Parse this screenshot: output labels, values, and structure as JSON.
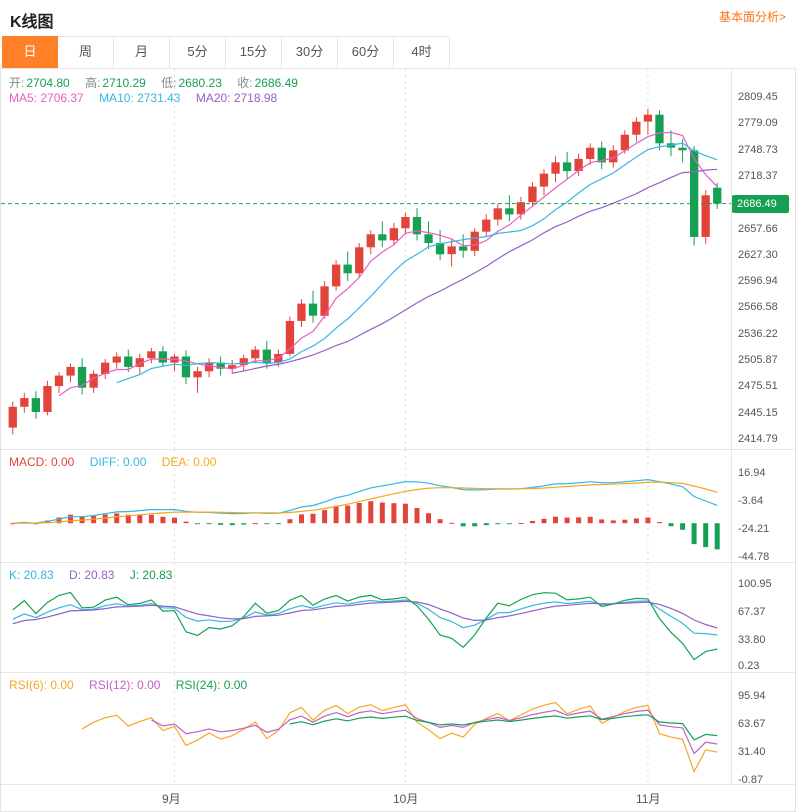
{
  "header": {
    "title": "K线图",
    "link": "基本面分析>"
  },
  "tabs": [
    {
      "id": "day",
      "label": "日",
      "active": true
    },
    {
      "id": "week",
      "label": "周",
      "active": false
    },
    {
      "id": "month",
      "label": "月",
      "active": false
    },
    {
      "id": "m5",
      "label": "5分",
      "active": false
    },
    {
      "id": "m15",
      "label": "15分",
      "active": false
    },
    {
      "id": "m30",
      "label": "30分",
      "active": false
    },
    {
      "id": "m60",
      "label": "60分",
      "active": false
    },
    {
      "id": "h4",
      "label": "4时",
      "active": false
    }
  ],
  "main_legend": {
    "open_label": "开:",
    "open": "2704.80",
    "high_label": "高:",
    "high": "2710.29",
    "low_label": "低:",
    "low": "2680.23",
    "close_label": "收:",
    "close": "2686.49",
    "ma5": "MA5: 2706.37",
    "ma10": "MA10: 2731.43",
    "ma20": "MA20: 2718.98"
  },
  "macd_legend": {
    "macd": "MACD: 0.00",
    "diff": "DIFF: 0.00",
    "dea": "DEA: 0.00"
  },
  "kdj_legend": {
    "k": "K: 20.83",
    "d": "D: 20.83",
    "j": "J: 20.83"
  },
  "rsi_legend": {
    "rsi6": "RSI(6): 0.00",
    "rsi12": "RSI(12): 0.00",
    "rsi24": "RSI(24): 0.00"
  },
  "last_price": "2686.49",
  "colors": {
    "up": "#e2443b",
    "down": "#16a053",
    "accent": "#ff8026",
    "link": "#ff7214",
    "ma5": "#e75fc3",
    "ma10": "#35b8e0",
    "ma20": "#9460c8",
    "diff": "#35b8e0",
    "dea": "#f5a623",
    "k": "#35b8e0",
    "d": "#9460c8",
    "j": "#16a053",
    "rsi6": "#f5a623",
    "rsi12": "#c45fc4",
    "rsi24": "#16a053",
    "price_tag": "#16a053",
    "grid": "#d9d9d9"
  },
  "chart_data": {
    "type": "candlestick",
    "title": "K线图 (日)",
    "ylim": [
      2414.79,
      2809.45
    ],
    "y_axis": {
      "main": [
        "2809.45",
        "2779.09",
        "2748.73",
        "2718.37",
        "2657.66",
        "2627.30",
        "2596.94",
        "2566.58",
        "2536.22",
        "2505.87",
        "2475.51",
        "2445.15",
        "2414.79"
      ],
      "macd": [
        "16.94",
        "-3.64",
        "-24.21",
        "-44.78"
      ],
      "kdj": [
        "100.95",
        "67.37",
        "33.80",
        "0.23"
      ],
      "rsi": [
        "95.94",
        "63.67",
        "31.40",
        "-0.87"
      ]
    },
    "months": [
      {
        "label": "9月",
        "index": 14
      },
      {
        "label": "10月",
        "index": 34
      },
      {
        "label": "11月",
        "index": 55
      }
    ],
    "indicators": {
      "ma": [
        5,
        10,
        20
      ],
      "macd": [
        12,
        26,
        9
      ],
      "kdj": [
        9,
        3,
        3
      ],
      "rsi": [
        6,
        12,
        24
      ]
    },
    "candles": [
      [
        2428,
        2458,
        2420,
        2452
      ],
      [
        2452,
        2468,
        2445,
        2462
      ],
      [
        2462,
        2470,
        2438,
        2446
      ],
      [
        2446,
        2482,
        2442,
        2476
      ],
      [
        2476,
        2492,
        2468,
        2488
      ],
      [
        2488,
        2502,
        2480,
        2498
      ],
      [
        2498,
        2508,
        2466,
        2474
      ],
      [
        2474,
        2494,
        2468,
        2490
      ],
      [
        2490,
        2507,
        2484,
        2503
      ],
      [
        2503,
        2515,
        2496,
        2510
      ],
      [
        2510,
        2518,
        2492,
        2498
      ],
      [
        2498,
        2513,
        2490,
        2508
      ],
      [
        2508,
        2520,
        2502,
        2516
      ],
      [
        2516,
        2522,
        2498,
        2503
      ],
      [
        2503,
        2513,
        2493,
        2510
      ],
      [
        2510,
        2517,
        2478,
        2486
      ],
      [
        2486,
        2498,
        2468,
        2493
      ],
      [
        2493,
        2508,
        2486,
        2503
      ],
      [
        2503,
        2510,
        2488,
        2496
      ],
      [
        2496,
        2506,
        2490,
        2500
      ],
      [
        2500,
        2512,
        2493,
        2508
      ],
      [
        2508,
        2522,
        2502,
        2518
      ],
      [
        2518,
        2528,
        2496,
        2503
      ],
      [
        2503,
        2518,
        2498,
        2513
      ],
      [
        2513,
        2556,
        2510,
        2551
      ],
      [
        2551,
        2576,
        2544,
        2571
      ],
      [
        2571,
        2586,
        2549,
        2557
      ],
      [
        2557,
        2597,
        2554,
        2591
      ],
      [
        2591,
        2621,
        2586,
        2616
      ],
      [
        2616,
        2631,
        2597,
        2606
      ],
      [
        2606,
        2641,
        2601,
        2636
      ],
      [
        2636,
        2656,
        2628,
        2651
      ],
      [
        2651,
        2666,
        2636,
        2644
      ],
      [
        2644,
        2664,
        2638,
        2658
      ],
      [
        2658,
        2676,
        2651,
        2671
      ],
      [
        2671,
        2681,
        2644,
        2651
      ],
      [
        2651,
        2666,
        2634,
        2641
      ],
      [
        2641,
        2656,
        2621,
        2628
      ],
      [
        2628,
        2646,
        2614,
        2637
      ],
      [
        2637,
        2651,
        2624,
        2632
      ],
      [
        2632,
        2658,
        2626,
        2654
      ],
      [
        2654,
        2674,
        2648,
        2668
      ],
      [
        2668,
        2686,
        2661,
        2681
      ],
      [
        2681,
        2696,
        2666,
        2674
      ],
      [
        2674,
        2694,
        2668,
        2688
      ],
      [
        2688,
        2711,
        2684,
        2706
      ],
      [
        2706,
        2726,
        2696,
        2721
      ],
      [
        2721,
        2741,
        2711,
        2734
      ],
      [
        2734,
        2746,
        2714,
        2724
      ],
      [
        2724,
        2744,
        2718,
        2738
      ],
      [
        2738,
        2756,
        2731,
        2751
      ],
      [
        2751,
        2758,
        2726,
        2734
      ],
      [
        2734,
        2754,
        2728,
        2748
      ],
      [
        2748,
        2771,
        2744,
        2766
      ],
      [
        2766,
        2786,
        2758,
        2781
      ],
      [
        2781,
        2796,
        2766,
        2789
      ],
      [
        2789,
        2794,
        2748,
        2756
      ],
      [
        2756,
        2771,
        2741,
        2751
      ],
      [
        2751,
        2761,
        2734,
        2748
      ],
      [
        2748,
        2753,
        2638,
        2648
      ],
      [
        2648,
        2702,
        2640,
        2696
      ],
      [
        2704.8,
        2710.29,
        2680.23,
        2686.49
      ]
    ]
  }
}
